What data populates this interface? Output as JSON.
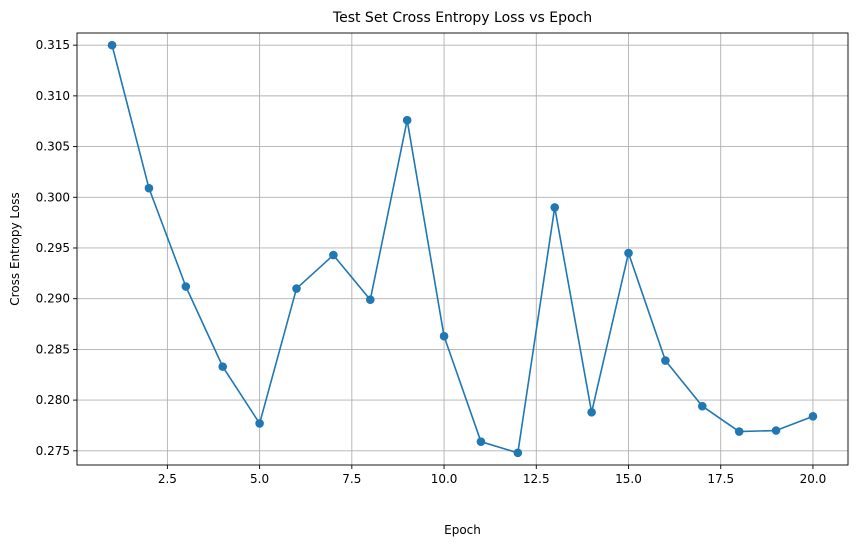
{
  "chart_data": {
    "type": "line",
    "title": "Test Set Cross Entropy Loss vs Epoch",
    "xlabel": "Epoch",
    "ylabel": "Cross Entropy Loss",
    "xlim": [
      0.05,
      20.95
    ],
    "ylim": [
      0.2736,
      0.3162
    ],
    "x_ticks": [
      2.5,
      5.0,
      7.5,
      10.0,
      12.5,
      15.0,
      17.5,
      20.0
    ],
    "x_tick_labels": [
      "2.5",
      "5.0",
      "7.5",
      "10.0",
      "12.5",
      "15.0",
      "17.5",
      "20.0"
    ],
    "y_ticks": [
      0.275,
      0.28,
      0.285,
      0.29,
      0.295,
      0.3,
      0.305,
      0.31,
      0.315
    ],
    "y_tick_labels": [
      "0.275",
      "0.280",
      "0.285",
      "0.290",
      "0.295",
      "0.300",
      "0.305",
      "0.310",
      "0.315"
    ],
    "grid": true,
    "marker": "circle",
    "series": [
      {
        "color": "#1f77b4",
        "x": [
          1,
          2,
          3,
          4,
          5,
          6,
          7,
          8,
          9,
          10,
          11,
          12,
          13,
          14,
          15,
          16,
          17,
          18,
          19,
          20
        ],
        "y": [
          0.315,
          0.3009,
          0.2912,
          0.2833,
          0.2777,
          0.291,
          0.2943,
          0.2899,
          0.3076,
          0.2863,
          0.2759,
          0.2748,
          0.299,
          0.2788,
          0.2945,
          0.2839,
          0.2794,
          0.2769,
          0.277,
          0.2784
        ]
      }
    ]
  }
}
